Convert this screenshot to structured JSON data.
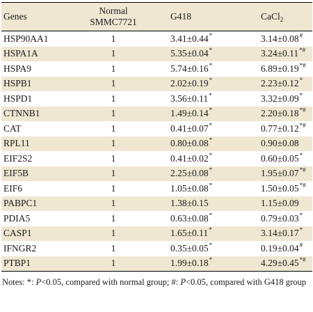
{
  "table": {
    "headers": {
      "genes": "Genes",
      "normal_line1": "Normal",
      "normal_line2": "SMMC7721",
      "g418": "G418",
      "cacl_base": "CaCl",
      "cacl_sub": "2"
    },
    "rows": [
      {
        "gene": "HSP90AA1",
        "normal": "1",
        "g418": "3.41±0.44",
        "g418_mark": "*",
        "cacl2": "3.14±0.08",
        "cacl2_mark": "#"
      },
      {
        "gene": "HSPA1A",
        "normal": "1",
        "g418": "5.35±0.04",
        "g418_mark": "*",
        "cacl2": "3.24±0.11",
        "cacl2_mark": "*#"
      },
      {
        "gene": "HSPA9",
        "normal": "1",
        "g418": "5.74±0.16",
        "g418_mark": "*",
        "cacl2": "6.89±0.19",
        "cacl2_mark": "*#"
      },
      {
        "gene": "HSPB1",
        "normal": "1",
        "g418": "2.02±0.19",
        "g418_mark": "*",
        "cacl2": "2.23±0.12",
        "cacl2_mark": "*"
      },
      {
        "gene": "HSPD1",
        "normal": "1",
        "g418": "3.56±0.11",
        "g418_mark": "*",
        "cacl2": "3.32±0.09",
        "cacl2_mark": "*"
      },
      {
        "gene": "CTNNB1",
        "normal": "1",
        "g418": "1.49±0.14",
        "g418_mark": "*",
        "cacl2": "2.20±0.18",
        "cacl2_mark": "*#"
      },
      {
        "gene": "CAT",
        "normal": "1",
        "g418": "0.41±0.07",
        "g418_mark": "*",
        "cacl2": "0.77±0.12",
        "cacl2_mark": "*#"
      },
      {
        "gene": "RPL11",
        "normal": "1",
        "g418": "0.80±0.08",
        "g418_mark": "*",
        "cacl2": "0.90±0.08",
        "cacl2_mark": ""
      },
      {
        "gene": "EIF2S2",
        "normal": "1",
        "g418": "0.41±0.02",
        "g418_mark": "*",
        "cacl2": "0.60±0.05",
        "cacl2_mark": "*"
      },
      {
        "gene": "EIF5B",
        "normal": "1",
        "g418": "2.25±0.08",
        "g418_mark": "*",
        "cacl2": "1.95±0.07",
        "cacl2_mark": "*#"
      },
      {
        "gene": "EIF6",
        "normal": "1",
        "g418": "1.05±0.08",
        "g418_mark": "*",
        "cacl2": "1.50±0.05",
        "cacl2_mark": "*#"
      },
      {
        "gene": "PABPC1",
        "normal": "1",
        "g418": "1.38±0.15",
        "g418_mark": "",
        "cacl2": "1.15±0.09",
        "cacl2_mark": ""
      },
      {
        "gene": "PDIA5",
        "normal": "1",
        "g418": "0.63±0.08",
        "g418_mark": "*",
        "cacl2": "0.79±0.03",
        "cacl2_mark": "*"
      },
      {
        "gene": "CASP1",
        "normal": "1",
        "g418": "1.65±0.11",
        "g418_mark": "*",
        "cacl2": "3.14±0.17",
        "cacl2_mark": "*"
      },
      {
        "gene": "IFNGR2",
        "normal": "1",
        "g418": "0.35±0.05",
        "g418_mark": "*",
        "cacl2": "0.19±0.04",
        "cacl2_mark": "#"
      },
      {
        "gene": "PTBP1",
        "normal": "1",
        "g418": "1.99±0.18",
        "g418_mark": "*",
        "cacl2": "4.29±0.45",
        "cacl2_mark": "*#"
      }
    ]
  },
  "notes": {
    "prefix": "Notes: *: ",
    "p1": "P",
    "text1": "<0.05, compared with normal group; #: ",
    "p2": "P",
    "text2": "<0.05, compared with G418 group"
  }
}
